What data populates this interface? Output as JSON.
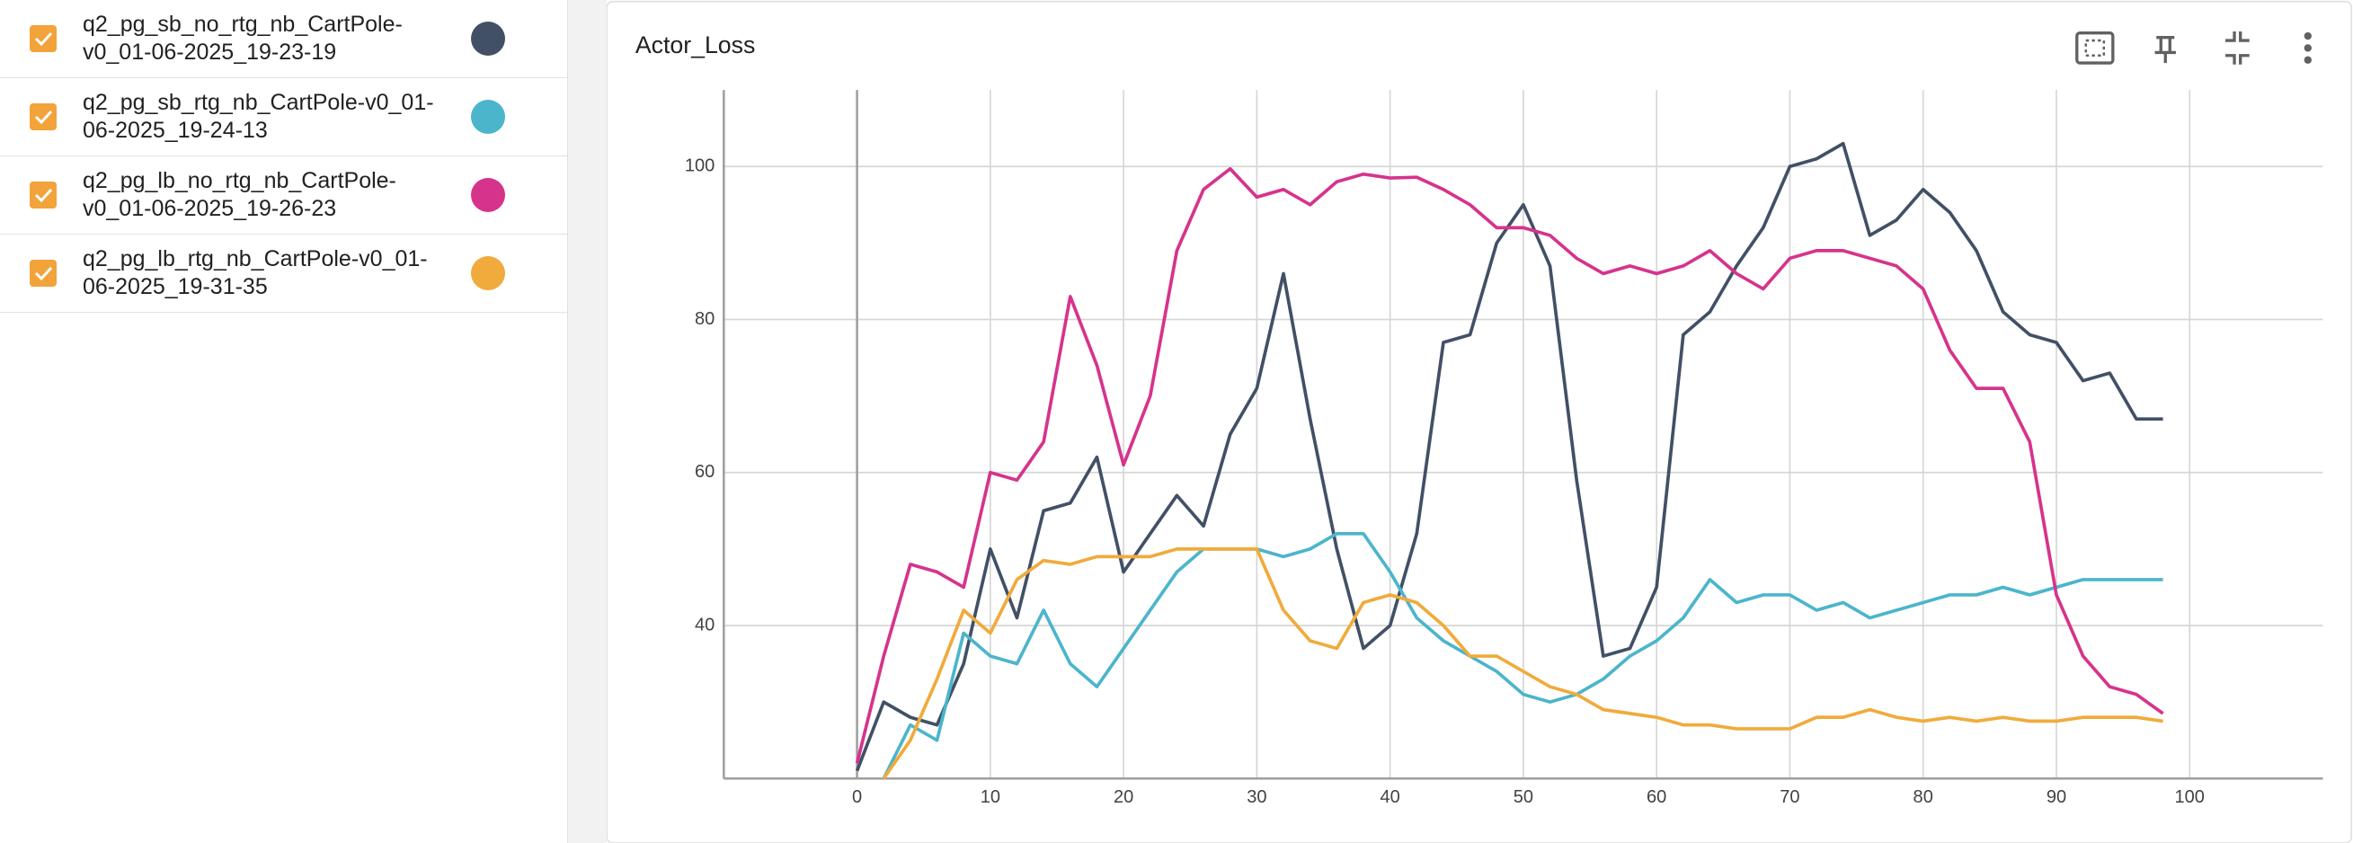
{
  "chart_data": {
    "type": "line",
    "title": "Actor_Loss",
    "x": [
      0,
      2,
      4,
      6,
      8,
      10,
      12,
      14,
      16,
      18,
      20,
      22,
      24,
      26,
      28,
      30,
      32,
      34,
      36,
      38,
      40,
      42,
      44,
      46,
      48,
      50,
      52,
      54,
      56,
      58,
      60,
      62,
      64,
      66,
      68,
      70,
      72,
      74,
      76,
      78,
      80,
      82,
      84,
      86,
      88,
      90,
      92,
      94,
      96,
      98
    ],
    "series": [
      {
        "name": "q2_pg_sb_no_rtg_nb_CartPole-v0_01-06-2025_19-23-19",
        "color": "#425066",
        "values": [
          21,
          30,
          28,
          27,
          35,
          50,
          41,
          55,
          56,
          62,
          47,
          52,
          57,
          53,
          65,
          71,
          86,
          67,
          50,
          37,
          40,
          52,
          77,
          78,
          90,
          95,
          87,
          59,
          36,
          37,
          45,
          78,
          81,
          87,
          92,
          100,
          101,
          103,
          91,
          93,
          97,
          94,
          89,
          81,
          78,
          77,
          72,
          73,
          67,
          67
        ]
      },
      {
        "name": "q2_pg_sb_rtg_nb_CartPole-v0_01-06-2025_19-24-13",
        "color": "#4bb5cc",
        "values": [
          null,
          20,
          27,
          25,
          39,
          36,
          35,
          42,
          35,
          32,
          37,
          42,
          47,
          50,
          50,
          50,
          49,
          50,
          52,
          52,
          47,
          41,
          38,
          36,
          34,
          31,
          30,
          31,
          33,
          36,
          38,
          41,
          46,
          43,
          44,
          44,
          42,
          43,
          41,
          42,
          43,
          44,
          44,
          45,
          44,
          45,
          46,
          46,
          46,
          46
        ]
      },
      {
        "name": "q2_pg_lb_no_rtg_nb_CartPole-v0_01-06-2025_19-26-23",
        "color": "#d6338c",
        "values": [
          22,
          36,
          48,
          47,
          45,
          60,
          59,
          64,
          83,
          74,
          61,
          70,
          89,
          97,
          99.7,
          96,
          97,
          95,
          98,
          99,
          98.5,
          98.6,
          97,
          95,
          92,
          92,
          91,
          88,
          86,
          87,
          86,
          87,
          89,
          86,
          84,
          88,
          89,
          89,
          88,
          87,
          84,
          76,
          71,
          71,
          64,
          44,
          36,
          32,
          31,
          28.5
        ]
      },
      {
        "name": "q2_pg_lb_rtg_nb_CartPole-v0_01-06-2025_19-31-35",
        "color": "#f0ab3c",
        "values": [
          null,
          20,
          25,
          33,
          42,
          39,
          46,
          48.5,
          48,
          49,
          49,
          49,
          50,
          50,
          50,
          50,
          42,
          38,
          37,
          43,
          44,
          43,
          40,
          36,
          36,
          34,
          32,
          31,
          29,
          28.5,
          28,
          27,
          27,
          26.5,
          26.5,
          26.5,
          28,
          28,
          29,
          28,
          27.5,
          28,
          27.5,
          28,
          27.5,
          27.5,
          28,
          28,
          28,
          27.5
        ]
      }
    ],
    "xlim": [
      -10,
      110
    ],
    "ylim": [
      20,
      110
    ],
    "xticks": [
      0,
      10,
      20,
      30,
      40,
      50,
      60,
      70,
      80,
      90,
      100
    ],
    "yticks": [
      40,
      60,
      80,
      100
    ],
    "grid": true
  }
}
